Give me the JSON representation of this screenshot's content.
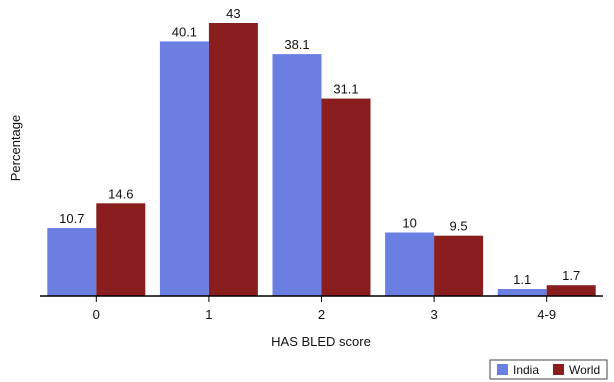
{
  "chart_data": {
    "type": "bar",
    "xlabel": "HAS BLED score",
    "ylabel": "Percentage",
    "categories": [
      "0",
      "1",
      "2",
      "3",
      "4-9"
    ],
    "series": [
      {
        "name": "India",
        "values": [
          10.7,
          40.1,
          38.1,
          10,
          1.1
        ],
        "labels": [
          "10.7",
          "40.1",
          "38.1",
          "10",
          "1.1"
        ],
        "color": "#6b7fe3"
      },
      {
        "name": "World",
        "values": [
          14.6,
          43,
          31.1,
          9.5,
          1.7
        ],
        "labels": [
          "14.6",
          "43",
          "31.1",
          "9.5",
          "1.7"
        ],
        "color": "#8a1d1d"
      }
    ],
    "ylim": [
      0,
      43
    ],
    "grid": false,
    "legend": "bottom-right"
  }
}
